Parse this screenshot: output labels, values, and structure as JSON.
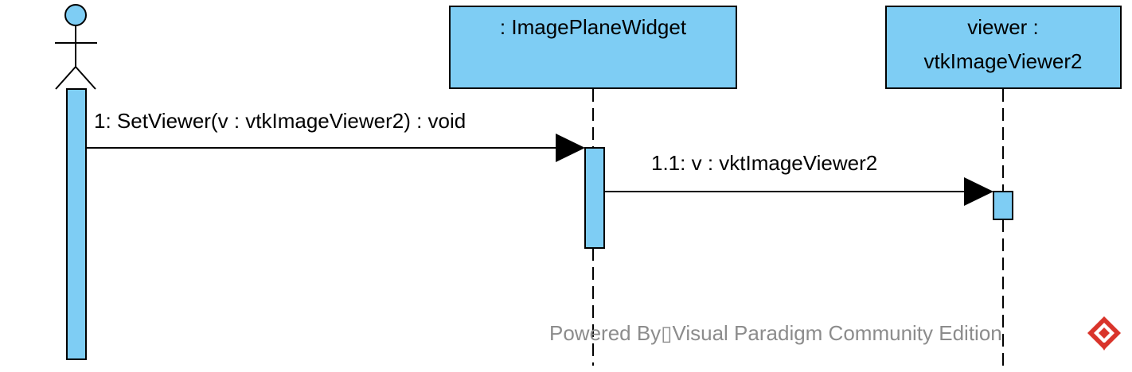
{
  "diagram": {
    "type": "sequence",
    "lifelines": [
      {
        "id": "actor",
        "kind": "actor",
        "label": ""
      },
      {
        "id": "widget",
        "kind": "object",
        "label": ": ImagePlaneWidget"
      },
      {
        "id": "viewer",
        "kind": "object",
        "label_line1": "viewer :",
        "label_line2": "vtkImageViewer2"
      }
    ],
    "messages": [
      {
        "id": "m1",
        "from": "actor",
        "to": "widget",
        "label": "1: SetViewer(v : vtkImageViewer2) : void"
      },
      {
        "id": "m2",
        "from": "widget",
        "to": "viewer",
        "label": "1.1: v : vktImageViewer2"
      }
    ]
  },
  "watermark": {
    "text": "Powered By▯Visual Paradigm Community Edition",
    "logo": "visual-paradigm-logo"
  },
  "colors": {
    "fill": "#7ecdf4",
    "stroke": "#000000",
    "watermark": "#8c8c8c",
    "logo_red": "#d9342b"
  }
}
